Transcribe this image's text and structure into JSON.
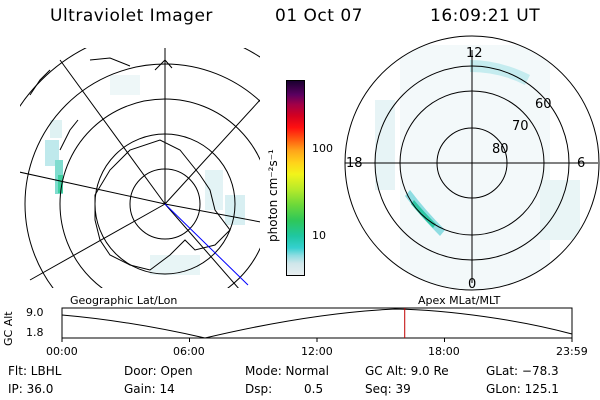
{
  "header": {
    "instrument": "Ultraviolet Imager",
    "date": "01 Oct 07",
    "time": "16:09:21 UT"
  },
  "colorbar": {
    "units": "photon cm⁻²s⁻¹",
    "ticks": [
      "100",
      "10"
    ]
  },
  "polar": {
    "top": "12",
    "left": "18",
    "right": "6",
    "bottom": "0",
    "lat80": "80",
    "lat70": "70",
    "lat60": "60"
  },
  "captions": {
    "left": "Geographic Lat/Lon",
    "right": "Apex MLat/MLT"
  },
  "alt_plot": {
    "ylabel": "GC Alt",
    "y_top": "9.0",
    "y_bottom": "1.8",
    "x_ticks": [
      "00:00",
      "06:00",
      "12:00",
      "18:00",
      "23:59"
    ],
    "current_time_marker_fraction": 0.672
  },
  "status": {
    "flt": "Flt: LBHL",
    "door": "Door: Open",
    "mode": "Mode: Normal",
    "gc_alt": "GC Alt: 9.0 Re",
    "glat": "GLat: −78.3",
    "ip": "IP: 36.0",
    "gain": "Gain: 14",
    "dsp_label": "Dsp:",
    "dsp_value": "0.5",
    "seq": "Seq: 39",
    "glon": "GLon: 125.1"
  }
}
